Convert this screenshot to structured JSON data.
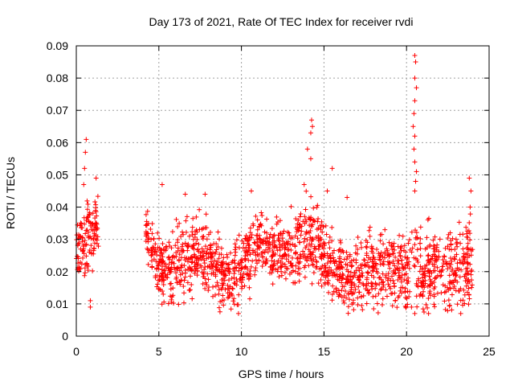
{
  "chart_data": {
    "type": "scatter",
    "title": "Day 173 of 2021, Rate Of TEC Index for receiver rvdi",
    "xlabel": "GPS time / hours",
    "ylabel": "ROTI / TECUs",
    "xlim": [
      0,
      25
    ],
    "ylim": [
      0,
      0.09
    ],
    "x_ticks": [
      "0",
      "5",
      "10",
      "15",
      "20",
      "25"
    ],
    "y_ticks": [
      "0",
      "0.01",
      "0.02",
      "0.03",
      "0.04",
      "0.05",
      "0.06",
      "0.07",
      "0.08",
      "0.09"
    ],
    "grid": true,
    "marker": "+",
    "series_color": "#ff0000",
    "envelope_hours": [
      0,
      0.5,
      1,
      1.3,
      4.2,
      5,
      6,
      7,
      8,
      9,
      10,
      11,
      12,
      13,
      13.5,
      14,
      14.3,
      14.6,
      15,
      15.5,
      16,
      17,
      18,
      19,
      19.5,
      20,
      20.3,
      20.5,
      20.8,
      21,
      22,
      23,
      24
    ],
    "envelope_center": [
      0.026,
      0.03,
      0.032,
      0.034,
      0.033,
      0.02,
      0.023,
      0.024,
      0.025,
      0.018,
      0.02,
      0.029,
      0.027,
      0.026,
      0.027,
      0.03,
      0.029,
      0.027,
      0.024,
      0.021,
      0.02,
      0.019,
      0.021,
      0.021,
      0.02,
      0.02,
      0.021,
      0.025,
      0.022,
      0.021,
      0.021,
      0.02,
      0.024
    ],
    "envelope_spread": [
      0.007,
      0.012,
      0.009,
      0.008,
      0.007,
      0.008,
      0.011,
      0.01,
      0.009,
      0.008,
      0.009,
      0.009,
      0.008,
      0.009,
      0.01,
      0.012,
      0.01,
      0.01,
      0.009,
      0.009,
      0.009,
      0.009,
      0.01,
      0.01,
      0.01,
      0.011,
      0.011,
      0.012,
      0.011,
      0.011,
      0.011,
      0.011,
      0.012
    ],
    "gaps_hours": [
      [
        1.35,
        4.2
      ]
    ],
    "peaks": [
      {
        "x": 0.6,
        "y": 0.061
      },
      {
        "x": 0.55,
        "y": 0.057
      },
      {
        "x": 0.5,
        "y": 0.052
      },
      {
        "x": 0.45,
        "y": 0.047
      },
      {
        "x": 1.2,
        "y": 0.049
      },
      {
        "x": 0.85,
        "y": 0.009
      },
      {
        "x": 0.85,
        "y": 0.011
      },
      {
        "x": 5.2,
        "y": 0.047
      },
      {
        "x": 6.6,
        "y": 0.044
      },
      {
        "x": 7.8,
        "y": 0.044
      },
      {
        "x": 10.6,
        "y": 0.045
      },
      {
        "x": 13.8,
        "y": 0.047
      },
      {
        "x": 14.0,
        "y": 0.058
      },
      {
        "x": 14.2,
        "y": 0.063
      },
      {
        "x": 14.25,
        "y": 0.067
      },
      {
        "x": 14.3,
        "y": 0.065
      },
      {
        "x": 14.2,
        "y": 0.055
      },
      {
        "x": 15.5,
        "y": 0.052
      },
      {
        "x": 15.2,
        "y": 0.045
      },
      {
        "x": 16.4,
        "y": 0.043
      },
      {
        "x": 20.5,
        "y": 0.087
      },
      {
        "x": 20.55,
        "y": 0.085
      },
      {
        "x": 20.5,
        "y": 0.08
      },
      {
        "x": 20.6,
        "y": 0.077
      },
      {
        "x": 20.5,
        "y": 0.073
      },
      {
        "x": 20.45,
        "y": 0.069
      },
      {
        "x": 20.4,
        "y": 0.065
      },
      {
        "x": 20.5,
        "y": 0.062
      },
      {
        "x": 20.45,
        "y": 0.058
      },
      {
        "x": 20.5,
        "y": 0.054
      },
      {
        "x": 20.6,
        "y": 0.051
      },
      {
        "x": 20.55,
        "y": 0.048
      },
      {
        "x": 20.5,
        "y": 0.045
      },
      {
        "x": 20.5,
        "y": 0.007
      },
      {
        "x": 20.3,
        "y": 0.009
      },
      {
        "x": 23.8,
        "y": 0.049
      },
      {
        "x": 23.9,
        "y": 0.045
      },
      {
        "x": 23.85,
        "y": 0.04
      }
    ],
    "n_points": 1800,
    "seed": 173
  }
}
